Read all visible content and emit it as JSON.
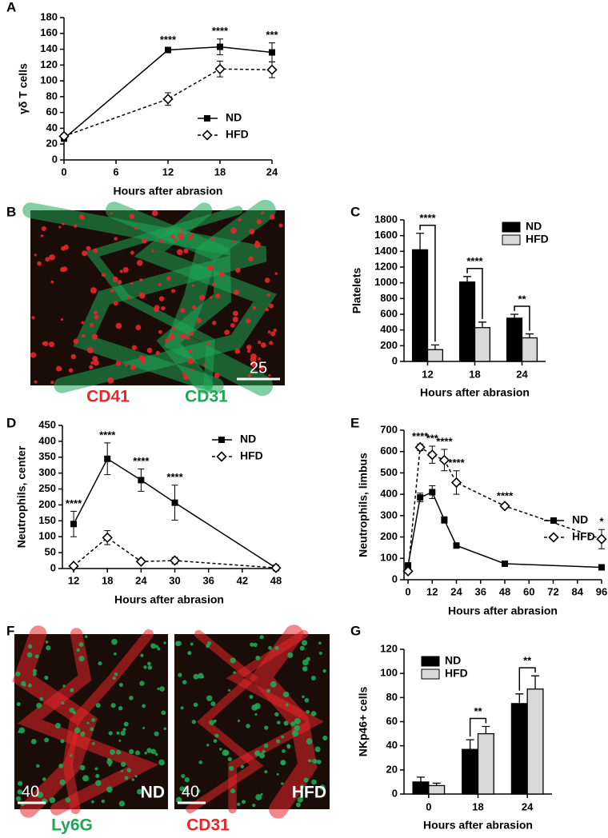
{
  "chart_data": [
    {
      "panel": "A",
      "type": "line",
      "x": [
        0,
        12,
        18,
        24
      ],
      "xlim": [
        0,
        24
      ],
      "xticks": [
        0,
        6,
        12,
        18,
        24
      ],
      "ylim": [
        0,
        180
      ],
      "yticks": [
        0,
        20,
        40,
        60,
        80,
        100,
        120,
        140,
        160,
        180
      ],
      "ylabel": "γδ T cells",
      "xlabel": "Hours after abrasion",
      "series": [
        {
          "name": "ND",
          "color": "#000000",
          "marker": "square",
          "line_style": "solid",
          "values": [
            27,
            139,
            143,
            136
          ],
          "errors": [
            3,
            3,
            10,
            12
          ]
        },
        {
          "name": "HFD",
          "color": "#000000",
          "marker": "diamond",
          "line_style": "dashed",
          "values": [
            30,
            77,
            115,
            114
          ],
          "errors": [
            3,
            8,
            10,
            10
          ]
        }
      ],
      "significance": [
        null,
        "****",
        "****",
        "***"
      ]
    },
    {
      "panel": "C",
      "type": "bar",
      "categories": [
        "12",
        "18",
        "24"
      ],
      "ylim": [
        0,
        1800
      ],
      "yticks": [
        0,
        200,
        400,
        600,
        800,
        1000,
        1200,
        1400,
        1600,
        1800
      ],
      "ylabel": "Platelets",
      "xlabel": "Hours after abrasion",
      "series": [
        {
          "name": "ND",
          "color": "#000000",
          "values": [
            1420,
            1010,
            550
          ],
          "errors": [
            210,
            70,
            50
          ]
        },
        {
          "name": "HFD",
          "color": "#d9d9d9",
          "values": [
            150,
            430,
            300
          ],
          "errors": [
            60,
            70,
            50
          ]
        }
      ],
      "significance": [
        "****",
        "****",
        "**"
      ]
    },
    {
      "panel": "D",
      "type": "line",
      "x": [
        12,
        18,
        24,
        30,
        48
      ],
      "xlim": [
        10,
        48
      ],
      "xticks": [
        12,
        18,
        24,
        30,
        36,
        42,
        48
      ],
      "ylim": [
        0,
        450
      ],
      "yticks": [
        0,
        50,
        100,
        150,
        200,
        250,
        300,
        350,
        400,
        450
      ],
      "ylabel": "Neutrophils, center",
      "xlabel": "Hours after abrasion",
      "series": [
        {
          "name": "ND",
          "color": "#000000",
          "marker": "square",
          "line_style": "solid",
          "values": [
            140,
            345,
            278,
            207,
            2
          ],
          "errors": [
            40,
            50,
            35,
            55,
            0
          ]
        },
        {
          "name": "HFD",
          "color": "#000000",
          "marker": "diamond",
          "line_style": "dashed",
          "values": [
            8,
            97,
            22,
            25,
            2
          ],
          "errors": [
            3,
            22,
            3,
            10,
            0
          ]
        }
      ],
      "significance": [
        "****",
        "****",
        "****",
        "****",
        null
      ]
    },
    {
      "panel": "E",
      "type": "line",
      "x": [
        0,
        6,
        12,
        18,
        24,
        48,
        96
      ],
      "xlim": [
        -2,
        96
      ],
      "xticks": [
        0,
        12,
        24,
        36,
        48,
        60,
        72,
        84,
        96
      ],
      "ylim": [
        0,
        700
      ],
      "yticks": [
        0,
        100,
        200,
        300,
        400,
        500,
        600,
        700
      ],
      "ylabel": "Neutrophils, limbus",
      "xlabel": "Hours after abrasion",
      "series": [
        {
          "name": "ND",
          "color": "#000000",
          "marker": "square",
          "line_style": "solid",
          "values": [
            65,
            385,
            410,
            280,
            160,
            75,
            58
          ],
          "errors": [
            15,
            20,
            30,
            15,
            5,
            5,
            5
          ]
        },
        {
          "name": "HFD",
          "color": "#000000",
          "marker": "diamond",
          "line_style": "dashed",
          "values": [
            40,
            620,
            585,
            560,
            455,
            345,
            190
          ],
          "errors": [
            10,
            15,
            40,
            50,
            55,
            10,
            45
          ]
        }
      ],
      "significance": [
        null,
        "****",
        "***",
        "****",
        "****",
        "****",
        "*"
      ]
    },
    {
      "panel": "G",
      "type": "bar",
      "categories": [
        "0",
        "18",
        "24"
      ],
      "ylim": [
        0,
        120
      ],
      "yticks": [
        0,
        20,
        40,
        60,
        80,
        100,
        120
      ],
      "ylabel": "NKp46+ cells",
      "xlabel": "Hours after abrasion",
      "series": [
        {
          "name": "ND",
          "color": "#000000",
          "values": [
            10,
            37,
            75
          ],
          "errors": [
            4,
            8,
            8
          ]
        },
        {
          "name": "HFD",
          "color": "#d9d9d9",
          "values": [
            7,
            50,
            87
          ],
          "errors": [
            2,
            6,
            11
          ]
        }
      ],
      "significance": [
        null,
        "**",
        "**"
      ]
    }
  ],
  "images": [
    {
      "panel": "B",
      "channels": [
        {
          "name": "CD41",
          "color": "#e8262a"
        },
        {
          "name": "CD31",
          "color": "#1fa657"
        }
      ],
      "frames": [
        {
          "scale_label": "25"
        }
      ]
    },
    {
      "panel": "F",
      "channels": [
        {
          "name": "Ly6G",
          "color": "#1fa657"
        },
        {
          "name": "CD31",
          "color": "#e8262a"
        }
      ],
      "frames": [
        {
          "scale_label": "40",
          "label": "ND"
        },
        {
          "scale_label": "40",
          "label": "HFD"
        }
      ]
    }
  ]
}
